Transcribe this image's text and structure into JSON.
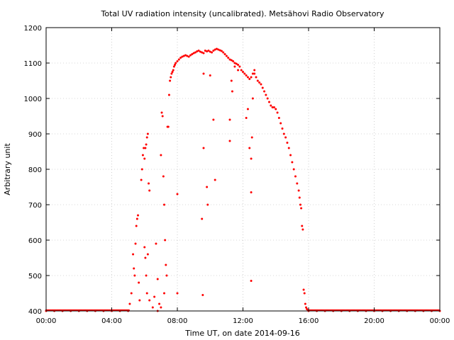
{
  "chart_data": {
    "type": "scatter",
    "title": "Total UV radiation intensity (uncalibrated). Metsähovi Radio Observatory",
    "xlabel": "Time UT, on date 2014-09-16",
    "ylabel": "Arbitrary unit",
    "xlim": [
      0,
      24
    ],
    "ylim": [
      400,
      1200
    ],
    "x_ticks": [
      {
        "value": 0,
        "label": "00:00"
      },
      {
        "value": 4,
        "label": "04:00"
      },
      {
        "value": 8,
        "label": "08:00"
      },
      {
        "value": 12,
        "label": "12:00"
      },
      {
        "value": 16,
        "label": "16:00"
      },
      {
        "value": 20,
        "label": "20:00"
      },
      {
        "value": 24,
        "label": "00:00"
      }
    ],
    "y_ticks": [
      {
        "value": 400,
        "label": "400"
      },
      {
        "value": 500,
        "label": "500"
      },
      {
        "value": 600,
        "label": "600"
      },
      {
        "value": 700,
        "label": "700"
      },
      {
        "value": 800,
        "label": "800"
      },
      {
        "value": 900,
        "label": "900"
      },
      {
        "value": 1000,
        "label": "1000"
      },
      {
        "value": 1100,
        "label": "1100"
      },
      {
        "value": 1200,
        "label": "1200"
      }
    ],
    "grid": true,
    "marker_color": "#ff0000",
    "series": [
      {
        "values_xy": [
          [
            0.0,
            400
          ],
          [
            0.5,
            400
          ],
          [
            1.0,
            400
          ],
          [
            1.5,
            400
          ],
          [
            2.0,
            400
          ],
          [
            2.5,
            400
          ],
          [
            3.0,
            400
          ],
          [
            3.5,
            400
          ],
          [
            4.0,
            400
          ],
          [
            4.5,
            400
          ],
          [
            5.0,
            400
          ],
          [
            5.1,
            420
          ],
          [
            5.2,
            450
          ],
          [
            5.3,
            560
          ],
          [
            5.35,
            520
          ],
          [
            5.4,
            500
          ],
          [
            5.45,
            590
          ],
          [
            5.5,
            640
          ],
          [
            5.55,
            660
          ],
          [
            5.6,
            670
          ],
          [
            5.65,
            480
          ],
          [
            5.7,
            430
          ],
          [
            5.8,
            770
          ],
          [
            5.85,
            800
          ],
          [
            5.9,
            840
          ],
          [
            5.95,
            860
          ],
          [
            6.0,
            830
          ],
          [
            6.05,
            860
          ],
          [
            6.1,
            870
          ],
          [
            6.15,
            890
          ],
          [
            6.2,
            900
          ],
          [
            6.25,
            760
          ],
          [
            6.3,
            740
          ],
          [
            6.0,
            580
          ],
          [
            6.05,
            550
          ],
          [
            6.1,
            500
          ],
          [
            6.15,
            450
          ],
          [
            6.2,
            560
          ],
          [
            6.3,
            430
          ],
          [
            6.5,
            410
          ],
          [
            6.6,
            440
          ],
          [
            6.7,
            590
          ],
          [
            6.8,
            490
          ],
          [
            6.9,
            420
          ],
          [
            7.0,
            840
          ],
          [
            7.05,
            960
          ],
          [
            7.1,
            950
          ],
          [
            7.15,
            780
          ],
          [
            7.2,
            700
          ],
          [
            7.25,
            600
          ],
          [
            7.3,
            530
          ],
          [
            7.35,
            500
          ],
          [
            7.4,
            920
          ],
          [
            7.45,
            920
          ],
          [
            7.5,
            1010
          ],
          [
            7.55,
            1050
          ],
          [
            7.6,
            1060
          ],
          [
            7.65,
            1070
          ],
          [
            7.7,
            1075
          ],
          [
            7.75,
            1080
          ],
          [
            7.8,
            1090
          ],
          [
            7.85,
            1095
          ],
          [
            7.9,
            1100
          ],
          [
            8.0,
            1105
          ],
          [
            8.1,
            1110
          ],
          [
            8.2,
            1115
          ],
          [
            8.3,
            1118
          ],
          [
            8.4,
            1120
          ],
          [
            8.5,
            1122
          ],
          [
            8.6,
            1120
          ],
          [
            8.7,
            1118
          ],
          [
            8.8,
            1122
          ],
          [
            8.9,
            1125
          ],
          [
            9.0,
            1128
          ],
          [
            9.1,
            1130
          ],
          [
            9.2,
            1133
          ],
          [
            9.3,
            1135
          ],
          [
            9.4,
            1132
          ],
          [
            9.5,
            1130
          ],
          [
            9.6,
            1128
          ],
          [
            9.7,
            1135
          ],
          [
            9.8,
            1133
          ],
          [
            9.9,
            1135
          ],
          [
            10.0,
            1132
          ],
          [
            10.1,
            1130
          ],
          [
            10.2,
            1135
          ],
          [
            10.3,
            1138
          ],
          [
            10.4,
            1140
          ],
          [
            10.5,
            1138
          ],
          [
            10.6,
            1136
          ],
          [
            10.7,
            1134
          ],
          [
            10.8,
            1130
          ],
          [
            10.9,
            1125
          ],
          [
            11.0,
            1120
          ],
          [
            11.1,
            1115
          ],
          [
            11.2,
            1110
          ],
          [
            11.3,
            1108
          ],
          [
            11.4,
            1105
          ],
          [
            11.5,
            1100
          ],
          [
            11.6,
            1098
          ],
          [
            11.7,
            1095
          ],
          [
            11.8,
            1090
          ],
          [
            11.9,
            1080
          ],
          [
            12.0,
            1075
          ],
          [
            12.1,
            1070
          ],
          [
            12.2,
            1065
          ],
          [
            12.3,
            1060
          ],
          [
            12.4,
            1055
          ],
          [
            12.5,
            1060
          ],
          [
            12.6,
            1070
          ],
          [
            12.7,
            1080
          ],
          [
            12.8,
            1060
          ],
          [
            12.9,
            1050
          ],
          [
            13.0,
            1045
          ],
          [
            13.1,
            1040
          ],
          [
            13.2,
            1030
          ],
          [
            13.3,
            1020
          ],
          [
            13.4,
            1010
          ],
          [
            13.5,
            1000
          ],
          [
            13.6,
            990
          ],
          [
            13.7,
            980
          ],
          [
            13.8,
            975
          ],
          [
            13.9,
            975
          ],
          [
            14.0,
            970
          ],
          [
            14.1,
            960
          ],
          [
            14.2,
            945
          ],
          [
            14.3,
            930
          ],
          [
            14.4,
            915
          ],
          [
            14.5,
            900
          ],
          [
            14.6,
            890
          ],
          [
            14.7,
            875
          ],
          [
            14.8,
            860
          ],
          [
            14.9,
            840
          ],
          [
            15.0,
            820
          ],
          [
            15.1,
            800
          ],
          [
            15.2,
            780
          ],
          [
            15.3,
            760
          ],
          [
            15.4,
            740
          ],
          [
            15.45,
            720
          ],
          [
            15.5,
            700
          ],
          [
            15.55,
            690
          ],
          [
            15.6,
            640
          ],
          [
            15.65,
            630
          ],
          [
            15.7,
            460
          ],
          [
            15.75,
            450
          ],
          [
            15.8,
            420
          ],
          [
            15.85,
            410
          ],
          [
            15.9,
            405
          ],
          [
            6.8,
            400
          ],
          [
            7.0,
            410
          ],
          [
            7.2,
            450
          ],
          [
            8.0,
            730
          ],
          [
            8.0,
            450
          ],
          [
            9.5,
            660
          ],
          [
            9.6,
            860
          ],
          [
            9.8,
            750
          ],
          [
            9.85,
            700
          ],
          [
            10.0,
            1065
          ],
          [
            10.2,
            940
          ],
          [
            10.3,
            770
          ],
          [
            9.55,
            445
          ],
          [
            9.6,
            1070
          ],
          [
            11.2,
            880
          ],
          [
            11.2,
            940
          ],
          [
            11.3,
            1050
          ],
          [
            11.35,
            1020
          ],
          [
            11.5,
            1090
          ],
          [
            11.7,
            1080
          ],
          [
            12.2,
            945
          ],
          [
            12.3,
            970
          ],
          [
            12.4,
            860
          ],
          [
            12.5,
            735
          ],
          [
            12.5,
            485
          ],
          [
            12.5,
            830
          ],
          [
            12.55,
            890
          ],
          [
            12.6,
            1000
          ],
          [
            12.7,
            1070
          ],
          [
            16.0,
            400
          ],
          [
            16.5,
            400
          ],
          [
            17.0,
            400
          ],
          [
            17.5,
            400
          ],
          [
            18.0,
            400
          ],
          [
            18.5,
            400
          ],
          [
            19.0,
            400
          ],
          [
            19.5,
            400
          ],
          [
            20.0,
            400
          ],
          [
            20.5,
            400
          ],
          [
            21.0,
            400
          ],
          [
            21.5,
            400
          ],
          [
            22.0,
            400
          ],
          [
            22.5,
            400
          ],
          [
            23.0,
            400
          ],
          [
            23.5,
            400
          ],
          [
            24.0,
            400
          ]
        ]
      }
    ]
  }
}
